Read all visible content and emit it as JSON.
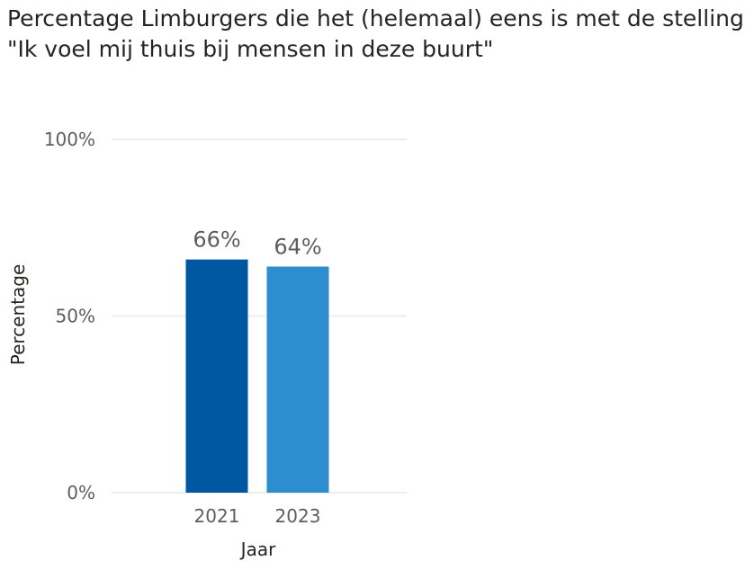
{
  "title": {
    "line1": "Percentage Limburgers die het (helemaal) eens is met de stelling:",
    "line2": "\"Ik voel mij thuis bij mensen in deze buurt\""
  },
  "colors": {
    "series": [
      "#0057A1",
      "#2E8DCE"
    ],
    "grid": "#e9e9e9"
  },
  "chart_data": {
    "type": "bar",
    "categories": [
      "2021",
      "2023"
    ],
    "values": [
      66,
      64
    ],
    "data_labels": [
      "66%",
      "64%"
    ],
    "y_ticks": [
      {
        "value": 0,
        "label": "0%"
      },
      {
        "value": 50,
        "label": "50%"
      },
      {
        "value": 100,
        "label": "100%"
      }
    ],
    "xlabel": "Jaar",
    "ylabel": "Percentage",
    "ylim": [
      0,
      100
    ],
    "grid": true,
    "legend": "none"
  }
}
